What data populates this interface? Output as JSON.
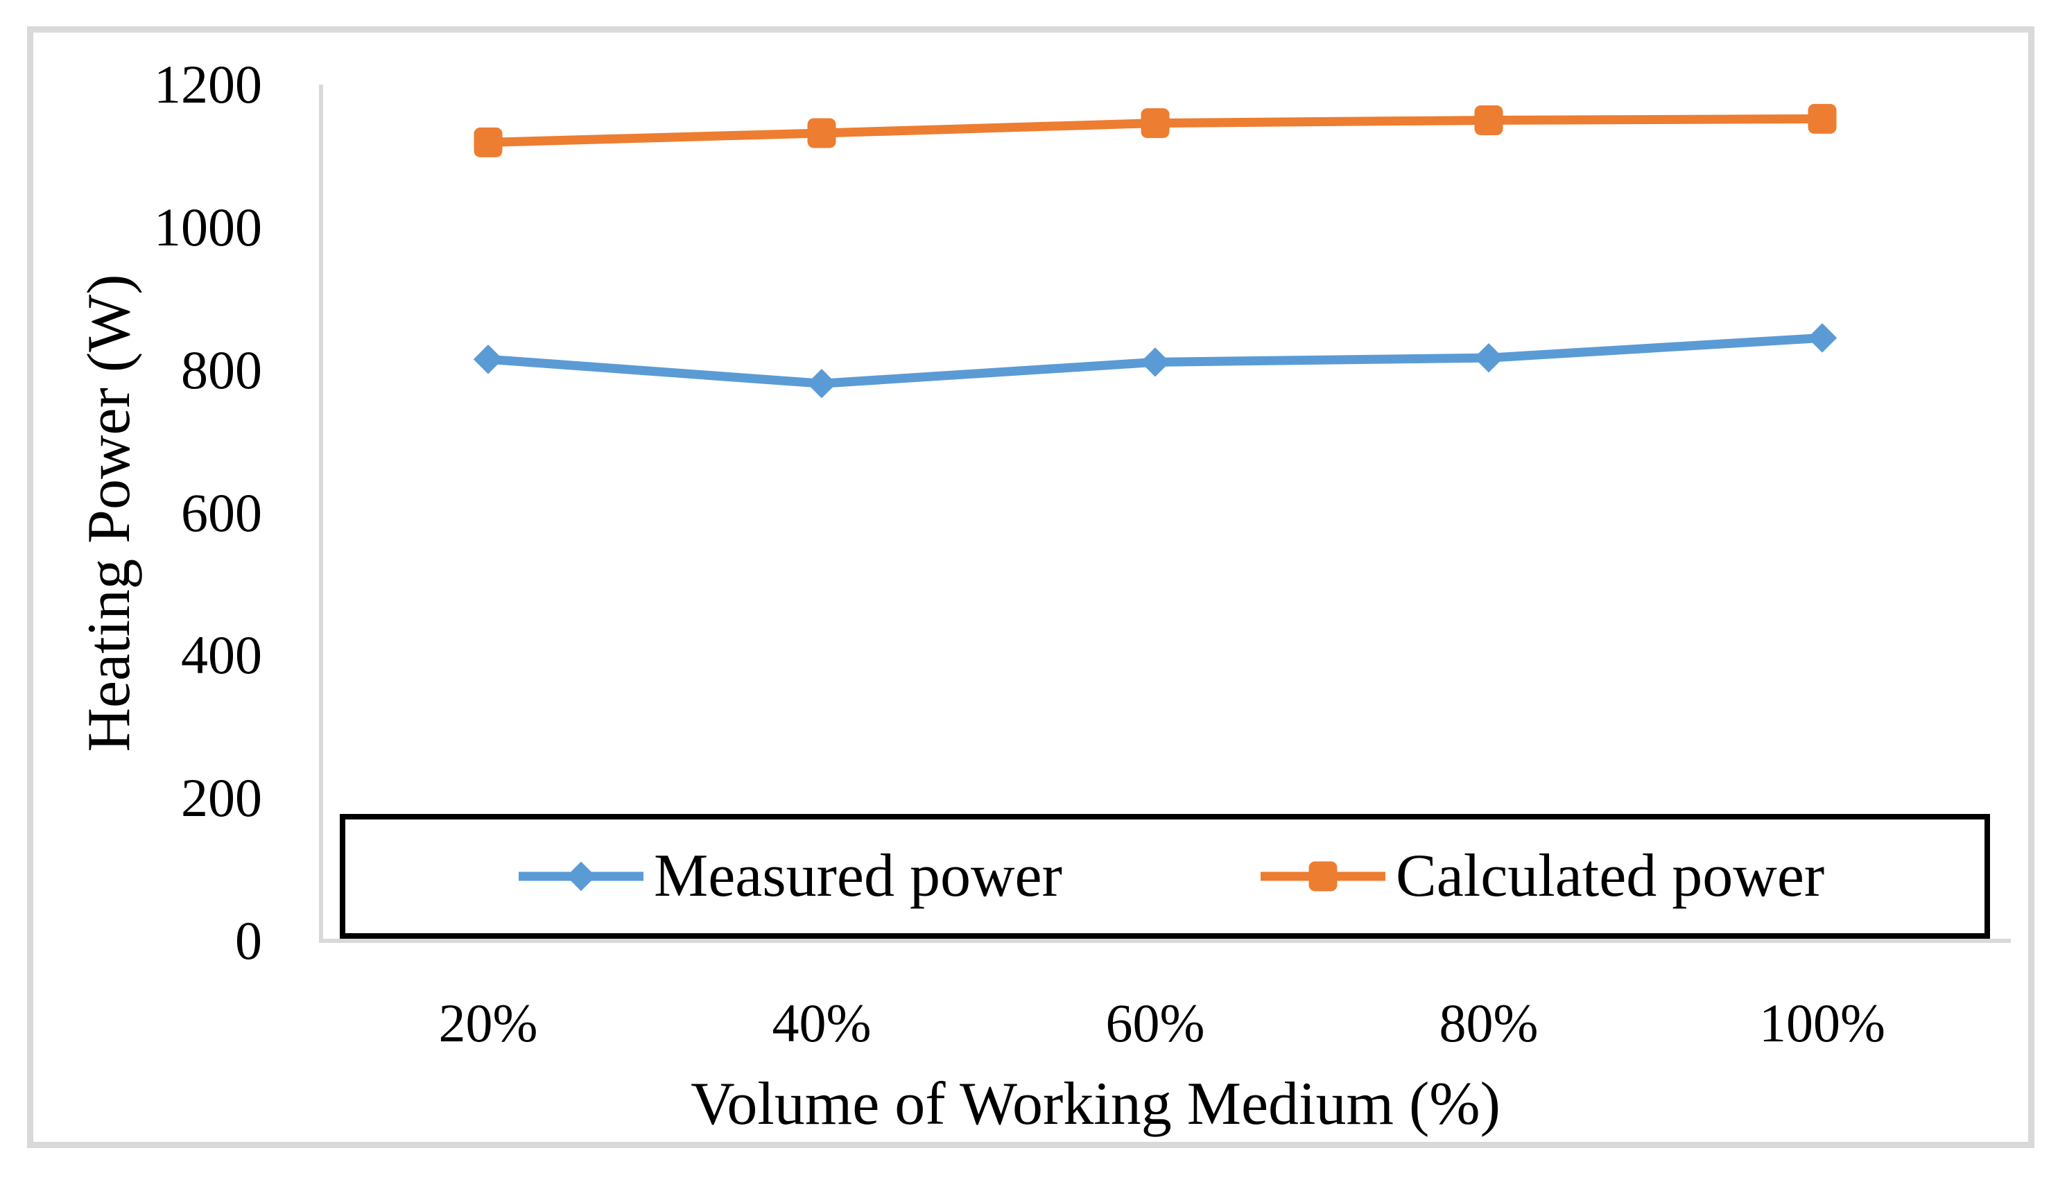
{
  "chart_data": {
    "type": "line",
    "title": "",
    "xlabel": "Volume of Working Medium (%)",
    "ylabel": "Heating Power (W)",
    "categories": [
      "20%",
      "40%",
      "60%",
      "80%",
      "100%"
    ],
    "series": [
      {
        "name": "Measured power",
        "color": "#5B9BD5",
        "marker": "diamond",
        "values": [
          815,
          781,
          811,
          817,
          845
        ]
      },
      {
        "name": "Calculated power",
        "color": "#ED7D31",
        "marker": "square",
        "values": [
          1119,
          1132,
          1146,
          1150,
          1152
        ]
      }
    ],
    "ylim": [
      0,
      1200
    ],
    "yticks": [
      0,
      200,
      400,
      600,
      800,
      1000,
      1200
    ],
    "grid": false,
    "legend_position": "bottom-inside",
    "axis_line_color": "#d9d9d9",
    "figure_border_color": "#d9d9d9",
    "text_color": "#000000"
  }
}
